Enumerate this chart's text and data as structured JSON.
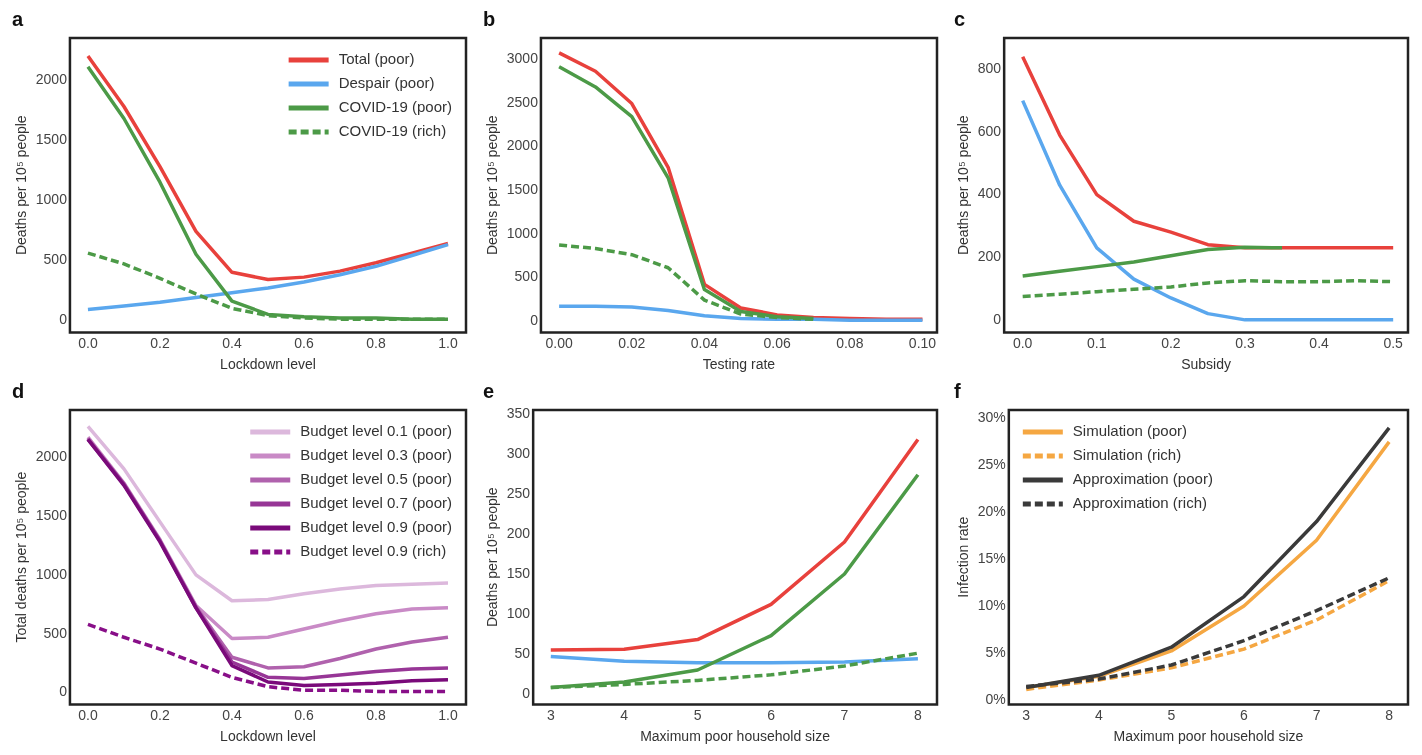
{
  "chart_data": [
    {
      "type": "line",
      "title": "a",
      "xlabel": "Lockdown level",
      "ylabel": "Deaths per 10⁵ people",
      "x": [
        0,
        0.1,
        0.2,
        0.3,
        0.4,
        0.5,
        0.6,
        0.7,
        0.8,
        0.9,
        1.0
      ],
      "xlim": [
        -0.05,
        1.05
      ],
      "xticks": [
        {
          "value": 0,
          "label": "0.0"
        },
        {
          "value": 0.2,
          "label": "0.2"
        },
        {
          "value": 0.4,
          "label": "0.4"
        },
        {
          "value": 0.6,
          "label": "0.6"
        },
        {
          "value": 0.8,
          "label": "0.8"
        },
        {
          "value": 1,
          "label": "1.0"
        }
      ],
      "ylim": [
        -100,
        2350
      ],
      "yticks": [
        0,
        500,
        1000,
        1500,
        2000
      ],
      "grid": false,
      "legend": "top right",
      "marker": "none",
      "series": [
        {
          "name": "Total (poor)",
          "color": "#e8413c",
          "values": [
            2200,
            1780,
            1280,
            740,
            400,
            340,
            360,
            410,
            480,
            560,
            640
          ]
        },
        {
          "name": "Despair (poor)",
          "color": "#5aa7ee",
          "values": [
            90,
            120,
            150,
            190,
            230,
            270,
            320,
            380,
            450,
            540,
            630
          ]
        },
        {
          "name": "COVID-19 (poor)",
          "color": "#4c9a47",
          "values": [
            2110,
            1680,
            1150,
            550,
            160,
            50,
            30,
            20,
            20,
            10,
            10
          ]
        },
        {
          "name": "COVID-19 (rich)",
          "color": "#4c9a47",
          "line_style": "dashed",
          "values": [
            560,
            470,
            350,
            220,
            100,
            40,
            20,
            10,
            10,
            10,
            10
          ]
        }
      ]
    },
    {
      "type": "line",
      "title": "b",
      "xlabel": "Testing rate",
      "ylabel": "Deaths per 10⁵ people",
      "x": [
        0,
        0.01,
        0.02,
        0.03,
        0.04,
        0.05,
        0.06,
        0.07,
        0.08,
        0.09,
        0.1
      ],
      "xlim": [
        -0.005,
        0.104
      ],
      "xticks": [
        {
          "value": 0,
          "label": "0.00"
        },
        {
          "value": 0.02,
          "label": "0.02"
        },
        {
          "value": 0.04,
          "label": "0.04"
        },
        {
          "value": 0.06,
          "label": "0.06"
        },
        {
          "value": 0.08,
          "label": "0.08"
        },
        {
          "value": 0.1,
          "label": "0.10"
        }
      ],
      "ylim": [
        -130,
        3240
      ],
      "yticks": [
        0,
        500,
        1000,
        1500,
        2000,
        2500,
        3000
      ],
      "grid": false,
      "marker": "none",
      "series": [
        {
          "color": "#e8413c",
          "values": [
            3070,
            2860,
            2490,
            1760,
            420,
            150,
            70,
            40,
            30,
            20,
            20
          ]
        },
        {
          "color": "#5aa7ee",
          "values": [
            170,
            170,
            160,
            120,
            60,
            30,
            20,
            20,
            10,
            10,
            10
          ]
        },
        {
          "color": "#4c9a47",
          "values": [
            2910,
            2680,
            2340,
            1640,
            360,
            110,
            50,
            30,
            null,
            null,
            null
          ]
        },
        {
          "color": "#4c9a47",
          "line_style": "dashed",
          "values": [
            870,
            830,
            760,
            610,
            240,
            80,
            40,
            20,
            null,
            null,
            null
          ]
        }
      ]
    },
    {
      "type": "line",
      "title": "c",
      "xlabel": "Subsidy",
      "ylabel": "Deaths per 10⁵ people",
      "x": [
        0,
        0.05,
        0.1,
        0.15,
        0.2,
        0.25,
        0.3,
        0.35,
        0.4,
        0.45,
        0.5
      ],
      "xlim": [
        -0.025,
        0.52
      ],
      "xticks": [
        {
          "value": 0,
          "label": "0.0"
        },
        0.1,
        0.2,
        0.3,
        0.4,
        0.5
      ],
      "ylim": [
        -40,
        900
      ],
      "yticks": [
        0,
        200,
        400,
        600,
        800
      ],
      "grid": false,
      "marker": "none",
      "series": [
        {
          "color": "#e8413c",
          "values": [
            840,
            590,
            400,
            315,
            280,
            240,
            230,
            230,
            230,
            230,
            230
          ]
        },
        {
          "color": "#5aa7ee",
          "values": [
            700,
            430,
            230,
            130,
            70,
            20,
            0,
            0,
            0,
            0,
            0
          ]
        },
        {
          "color": "#4c9a47",
          "values": [
            140,
            155,
            170,
            185,
            205,
            225,
            232,
            230,
            null,
            null,
            null
          ]
        },
        {
          "color": "#4c9a47",
          "line_style": "dashed",
          "values": [
            75,
            82,
            90,
            98,
            105,
            118,
            125,
            122,
            122,
            125,
            122
          ]
        }
      ]
    },
    {
      "type": "line",
      "title": "d",
      "xlabel": "Lockdown level",
      "ylabel": "Total deaths per 10⁵ people",
      "x": [
        0,
        0.1,
        0.2,
        0.3,
        0.4,
        0.5,
        0.6,
        0.7,
        0.8,
        0.9,
        1.0
      ],
      "xlim": [
        -0.05,
        1.05
      ],
      "xticks": [
        {
          "value": 0,
          "label": "0.0"
        },
        {
          "value": 0.2,
          "label": "0.2"
        },
        {
          "value": 0.4,
          "label": "0.4"
        },
        {
          "value": 0.6,
          "label": "0.6"
        },
        {
          "value": 0.8,
          "label": "0.8"
        },
        {
          "value": 1,
          "label": "1.0"
        }
      ],
      "ylim": [
        -100,
        2400
      ],
      "yticks": [
        0,
        500,
        1000,
        1500,
        2000
      ],
      "grid": false,
      "legend": "top right",
      "marker": "none",
      "series": [
        {
          "name": "Budget level 0.1 (poor)",
          "color": "#dcb8dc",
          "values": [
            2260,
            1900,
            1450,
            1000,
            780,
            790,
            840,
            880,
            910,
            920,
            930
          ]
        },
        {
          "name": "Budget level 0.3 (poor)",
          "color": "#c98ac6",
          "values": [
            2170,
            1780,
            1300,
            740,
            460,
            470,
            540,
            610,
            670,
            710,
            720
          ]
        },
        {
          "name": "Budget level 0.5 (poor)",
          "color": "#b062ad",
          "values": [
            2160,
            1770,
            1290,
            730,
            300,
            210,
            220,
            290,
            370,
            430,
            470
          ]
        },
        {
          "name": "Budget level 0.7 (poor)",
          "color": "#973696",
          "values": [
            2150,
            1770,
            1290,
            720,
            260,
            130,
            120,
            150,
            180,
            200,
            210
          ]
        },
        {
          "name": "Budget level 0.9 (poor)",
          "color": "#7a0a7a",
          "values": [
            2150,
            1760,
            1280,
            720,
            230,
            90,
            60,
            70,
            80,
            100,
            110
          ]
        },
        {
          "name": "Budget level 0.9 (rich)",
          "color": "#880f88",
          "line_style": "dashed",
          "values": [
            580,
            470,
            370,
            250,
            130,
            50,
            20,
            20,
            10,
            10,
            10
          ]
        }
      ]
    },
    {
      "type": "line",
      "title": "e",
      "xlabel": "Maximum poor household size",
      "ylabel": "Deaths per 10⁵ people",
      "x": [
        3,
        4,
        5,
        6,
        7,
        8
      ],
      "xlim": [
        2.76,
        8.26
      ],
      "xticks": [
        3,
        4,
        5,
        6,
        7,
        8
      ],
      "ylim": [
        -13,
        355
      ],
      "yticks": [
        0,
        50,
        100,
        150,
        200,
        250,
        300,
        350
      ],
      "grid": false,
      "marker": "none",
      "series": [
        {
          "color": "#e8413c",
          "values": [
            55,
            56,
            68,
            112,
            190,
            318
          ]
        },
        {
          "color": "#5aa7ee",
          "values": [
            47,
            41,
            39,
            39,
            40,
            44
          ]
        },
        {
          "color": "#4c9a47",
          "values": [
            8,
            15,
            30,
            73,
            150,
            274
          ]
        },
        {
          "color": "#4c9a47",
          "line_style": "dashed",
          "values": [
            8,
            12,
            17,
            24,
            35,
            51
          ]
        }
      ]
    },
    {
      "type": "line",
      "title": "f",
      "xlabel": "Maximum poor household size",
      "ylabel": "Infection rate",
      "x": [
        3,
        4,
        5,
        6,
        7,
        8
      ],
      "xlim": [
        2.76,
        8.26
      ],
      "xticks": [
        3,
        4,
        5,
        6,
        7,
        8
      ],
      "ylim": [
        -0.5,
        30.9
      ],
      "yticks": [
        {
          "value": 0,
          "label": "0%"
        },
        {
          "value": 5,
          "label": "5%"
        },
        {
          "value": 10,
          "label": "10%"
        },
        {
          "value": 15,
          "label": "15%"
        },
        {
          "value": 20,
          "label": "20%"
        },
        {
          "value": 25,
          "label": "25%"
        },
        {
          "value": 30,
          "label": "30%"
        }
      ],
      "grid": false,
      "legend": "top left",
      "marker": "none",
      "series": [
        {
          "name": "Simulation (poor)",
          "color": "#f5a742",
          "values": [
            1.3,
            2.5,
            5.2,
            10,
            17,
            27.5
          ]
        },
        {
          "name": "Simulation (rich)",
          "color": "#f5a742",
          "line_style": "dashed",
          "values": [
            1.1,
            2.1,
            3.4,
            5.4,
            8.5,
            12.7
          ]
        },
        {
          "name": "Approximation (poor)",
          "color": "#3a3a3a",
          "values": [
            1.3,
            2.6,
            5.6,
            11,
            19,
            29
          ]
        },
        {
          "name": "Approximation (rich)",
          "color": "#3a3a3a",
          "line_style": "dashed",
          "values": [
            1.4,
            2.2,
            3.7,
            6.3,
            9.5,
            13
          ]
        }
      ]
    }
  ]
}
